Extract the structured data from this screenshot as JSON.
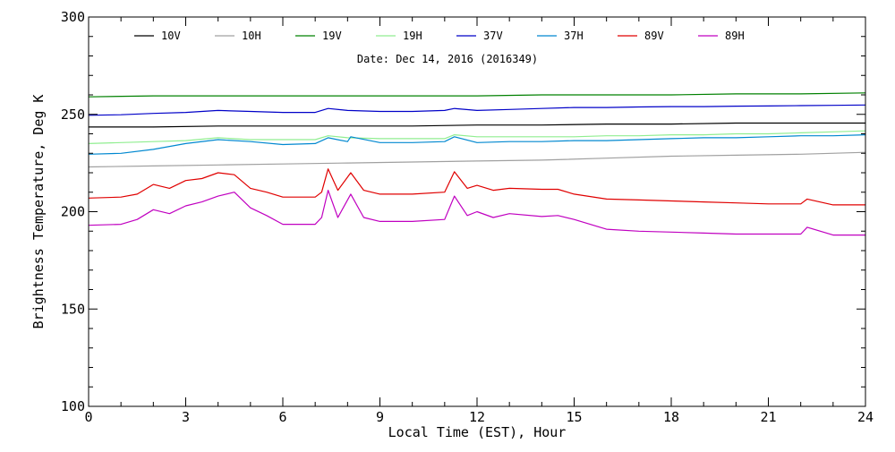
{
  "chart_data": {
    "type": "line",
    "subtitle": "Date: Dec 14, 2016 (2016349)",
    "xlabel": "Local Time (EST), Hour",
    "ylabel": "Brightness Temperature, Deg K",
    "xlim": [
      0,
      24
    ],
    "ylim": [
      100,
      300
    ],
    "xticks": [
      0,
      3,
      6,
      9,
      12,
      15,
      18,
      21,
      24
    ],
    "yticks": [
      100,
      150,
      200,
      250,
      300
    ],
    "grid": false,
    "legend_position": "top",
    "series": [
      {
        "name": "10V",
        "color": "#000000",
        "x": [
          0,
          2,
          4,
          6,
          8,
          10,
          12,
          14,
          16,
          18,
          20,
          22,
          24
        ],
        "y": [
          243.5,
          243.5,
          244,
          244,
          244,
          244,
          244.5,
          244.5,
          245,
          245,
          245.5,
          245.5,
          245.5
        ]
      },
      {
        "name": "10H",
        "color": "#a0a0a0",
        "x": [
          0,
          2,
          4,
          6,
          8,
          10,
          12,
          14,
          16,
          18,
          20,
          22,
          24
        ],
        "y": [
          223,
          223.5,
          224,
          224.5,
          225,
          225.5,
          226,
          226.5,
          227.5,
          228.5,
          229,
          229.5,
          230.5
        ]
      },
      {
        "name": "19V",
        "color": "#008000",
        "x": [
          0,
          2,
          4,
          6,
          8,
          10,
          12,
          14,
          16,
          18,
          20,
          22,
          24
        ],
        "y": [
          259,
          259.5,
          259.5,
          259.5,
          259.5,
          259.5,
          259.5,
          260,
          260,
          260,
          260.5,
          260.5,
          261
        ]
      },
      {
        "name": "19H",
        "color": "#90ee90",
        "x": [
          0,
          1,
          2,
          3,
          4,
          5,
          6,
          7,
          7.4,
          8,
          9,
          10,
          11,
          11.3,
          12,
          13,
          14,
          15,
          16,
          17,
          18,
          19,
          20,
          21,
          22,
          23,
          24
        ],
        "y": [
          235,
          235.5,
          236,
          236.5,
          238,
          237,
          237,
          237,
          239,
          238,
          237.5,
          237.5,
          237.5,
          239.5,
          238.5,
          238.5,
          238.5,
          238.5,
          239,
          239,
          239.5,
          239.5,
          240,
          240,
          240.5,
          241,
          241.5
        ]
      },
      {
        "name": "37V",
        "color": "#0000c8",
        "x": [
          0,
          1,
          2,
          3,
          4,
          5,
          6,
          7,
          7.4,
          8,
          9,
          10,
          11,
          11.3,
          12,
          13,
          14,
          15,
          16,
          17,
          18,
          19,
          20,
          21,
          22,
          23,
          24
        ],
        "y": [
          249.5,
          249.8,
          250.5,
          251,
          252,
          251.5,
          251,
          251,
          253,
          252,
          251.5,
          251.5,
          252,
          253,
          252,
          252.5,
          253,
          253.5,
          253.5,
          253.8,
          254,
          254,
          254.2,
          254.3,
          254.5,
          254.6,
          254.8
        ]
      },
      {
        "name": "37H",
        "color": "#0088d0",
        "x": [
          0,
          1,
          2,
          3,
          4,
          5,
          6,
          7,
          7.4,
          8,
          8.1,
          9,
          10,
          11,
          11.3,
          12,
          13,
          14,
          15,
          16,
          17,
          18,
          19,
          20,
          21,
          22,
          23,
          24
        ],
        "y": [
          229.5,
          230,
          232,
          235,
          237,
          236,
          234.5,
          235,
          238,
          236,
          238.5,
          235.5,
          235.5,
          236,
          238.5,
          235.5,
          236,
          236,
          236.5,
          236.5,
          237,
          237.5,
          238,
          238,
          238.5,
          239,
          239,
          239.5
        ]
      },
      {
        "name": "89V",
        "color": "#e00000",
        "x": [
          0,
          1,
          1.5,
          2,
          2.5,
          3,
          3.5,
          4,
          4.5,
          5,
          5.5,
          6,
          7,
          7.2,
          7.4,
          7.7,
          8.1,
          8.5,
          9,
          10,
          11,
          11.3,
          11.7,
          12,
          12.5,
          13,
          14,
          14.5,
          15,
          16,
          17,
          18,
          19,
          20,
          21,
          22,
          22.2,
          23,
          24
        ],
        "y": [
          207,
          207.5,
          209,
          214,
          212,
          216,
          217,
          220,
          219,
          212,
          210,
          207.5,
          207.5,
          210,
          222,
          211,
          220,
          211,
          209,
          209,
          210,
          220.5,
          212,
          213.5,
          211,
          212,
          211.5,
          211.5,
          209,
          206.5,
          206,
          205.5,
          205,
          204.5,
          204,
          204,
          206.5,
          203.5,
          203.5
        ]
      },
      {
        "name": "89H",
        "color": "#c000c0",
        "x": [
          0,
          1,
          1.5,
          2,
          2.5,
          3,
          3.5,
          4,
          4.5,
          5,
          5.5,
          6,
          7,
          7.2,
          7.4,
          7.7,
          8.1,
          8.5,
          9,
          10,
          11,
          11.3,
          11.7,
          12,
          12.5,
          13,
          14,
          14.5,
          15,
          16,
          17,
          18,
          19,
          20,
          21,
          22,
          22.2,
          23,
          24
        ],
        "y": [
          193,
          193.5,
          196,
          201,
          199,
          203,
          205,
          208,
          210,
          202,
          198,
          193.5,
          193.5,
          197,
          211,
          197,
          209,
          197,
          195,
          195,
          196,
          208,
          198,
          200,
          197,
          199,
          197.5,
          198,
          196,
          191,
          190,
          189.5,
          189,
          188.5,
          188.5,
          188.5,
          192,
          188,
          188
        ]
      }
    ]
  }
}
